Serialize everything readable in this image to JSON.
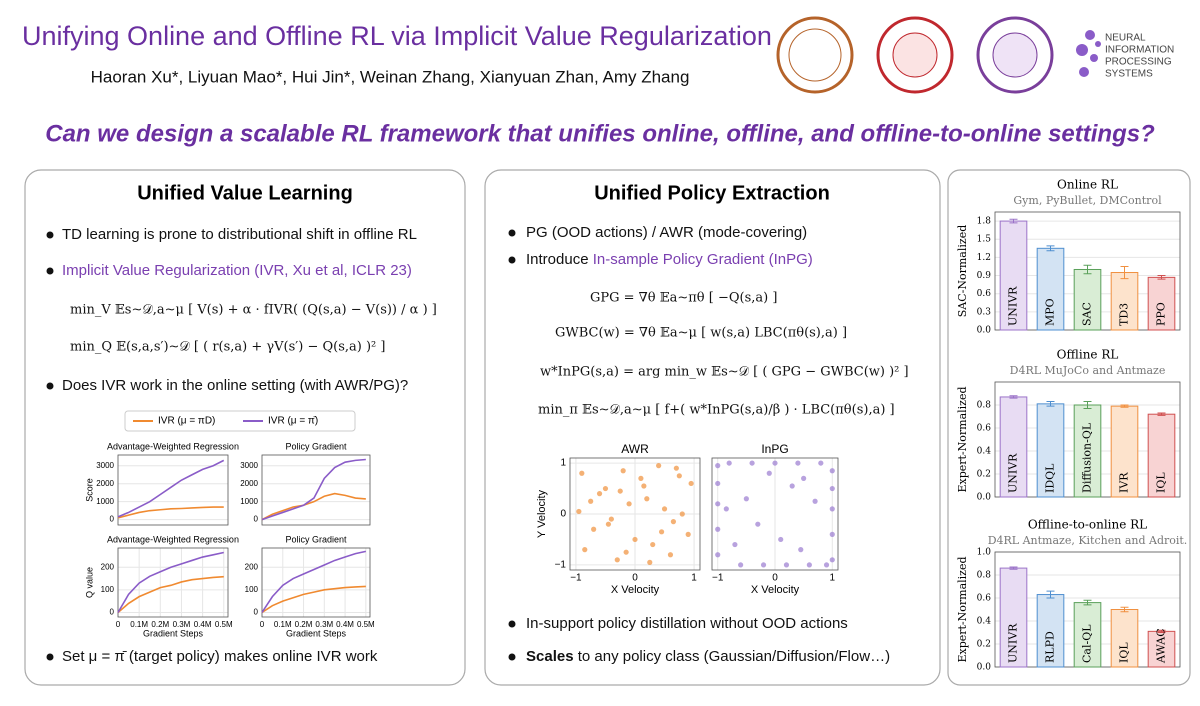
{
  "header": {
    "title": "Unifying Online and Offline RL via Implicit Value Regularization",
    "authors": "Haoran Xu*, Liyuan Mao*, Hui Jin*, Weinan Zhang, Xianyuan Zhan, Amy Zhang",
    "neurips": [
      "NEURAL",
      "INFORMATION",
      "PROCESSING",
      "SYSTEMS"
    ],
    "question": "Can we design a scalable RL framework that unifies online, offline, and offline-to-online settings?"
  },
  "left": {
    "title": "Unified Value Learning",
    "bullets": [
      "TD learning is prone to distributional shift in offline RL",
      "Implicit Value Regularization (IVR, Xu et al, ICLR 23)",
      "Does IVR work in the online setting (with AWR/PG)?",
      "Set μ = π̄ (target policy) makes online IVR work"
    ],
    "formulas": [
      "min_V  𝔼s∼𝒟,a∼μ [ V(s) + α · fIVR( (Q(s,a) − V(s)) / α ) ]",
      "min_Q  𝔼(s,a,s′)∼𝒟 [ ( r(s,a) + γV(s′) − Q(s,a) )² ]"
    ]
  },
  "middle": {
    "title": "Unified Policy Extraction",
    "bullets": [
      "PG (OOD actions) / AWR (mode-covering)",
      "Introduce",
      "In-sample Policy Gradient (InPG)",
      "In-support policy distillation without OOD actions",
      "Scales",
      "to any policy class (Gaussian/Diffusion/Flow…)"
    ],
    "formulas": [
      "GPG = ∇θ 𝔼a∼πθ [ −Q(s,a) ]",
      "GWBC(w) = ∇θ 𝔼a∼μ [ w(s,a) LBC(πθ(s),a) ]",
      "w*InPG(s,a) = arg min_w 𝔼s∼𝒟 [ ( GPG − GWBC(w) )² ]",
      "min_π 𝔼s∼𝒟,a∼μ [ f+( w*InPG(s,a)/β ) · LBC(πθ(s),a) ]"
    ]
  },
  "chart_data": [
    {
      "type": "line",
      "title": "Advantage-Weighted Regression",
      "y_label": "Score",
      "x": [
        0,
        50000,
        100000,
        150000,
        200000,
        250000,
        300000,
        350000,
        400000,
        450000,
        500000
      ],
      "xlim": [
        0,
        520000
      ],
      "ylim": [
        -300,
        3600
      ],
      "yticks": [
        0,
        1000,
        2000,
        3000
      ],
      "series": [
        {
          "name": "IVR (μ = πD)",
          "color": "#f08a30",
          "values": [
            100,
            250,
            400,
            500,
            550,
            600,
            620,
            650,
            680,
            700,
            700
          ]
        },
        {
          "name": "IVR (μ = π̄)",
          "color": "#8a5cc8",
          "values": [
            150,
            400,
            700,
            1000,
            1400,
            1800,
            2200,
            2500,
            2800,
            3000,
            3300
          ]
        }
      ]
    },
    {
      "type": "line",
      "title": "Policy Gradient",
      "x": [
        0,
        50000,
        100000,
        150000,
        200000,
        250000,
        300000,
        350000,
        400000,
        450000,
        500000
      ],
      "xlim": [
        0,
        520000
      ],
      "ylim": [
        -300,
        3600
      ],
      "yticks": [
        0,
        1000,
        2000,
        3000
      ],
      "series": [
        {
          "name": "IVR (μ = πD)",
          "color": "#f08a30",
          "values": [
            0,
            300,
            500,
            700,
            800,
            1000,
            1300,
            1450,
            1350,
            1200,
            1150
          ]
        },
        {
          "name": "IVR (μ = π̄)",
          "color": "#8a5cc8",
          "values": [
            0,
            200,
            400,
            600,
            800,
            1200,
            2300,
            2900,
            3200,
            3300,
            3350
          ]
        }
      ]
    },
    {
      "type": "line",
      "title": "Advantage-Weighted Regression",
      "y_label": "Q value",
      "x_label": "Gradient Steps",
      "x": [
        0,
        50000,
        100000,
        150000,
        200000,
        250000,
        300000,
        350000,
        400000,
        450000,
        500000
      ],
      "xlim": [
        0,
        520000
      ],
      "xticks": [
        0,
        {
          "value": 100000,
          "label": "0.1M"
        },
        {
          "value": 200000,
          "label": "0.2M"
        },
        {
          "value": 300000,
          "label": "0.3M"
        },
        {
          "value": 400000,
          "label": "0.4M"
        },
        {
          "value": 500000,
          "label": "0.5M"
        }
      ],
      "ylim": [
        -20,
        285
      ],
      "yticks": [
        0,
        100,
        200
      ],
      "series": [
        {
          "name": "IVR (μ = πD)",
          "color": "#f08a30",
          "values": [
            0,
            40,
            70,
            90,
            110,
            120,
            135,
            145,
            150,
            155,
            158
          ]
        },
        {
          "name": "IVR (μ = π̄)",
          "color": "#8a5cc8",
          "values": [
            0,
            80,
            130,
            160,
            180,
            200,
            215,
            230,
            245,
            255,
            265
          ]
        }
      ]
    },
    {
      "type": "line",
      "title": "Policy Gradient",
      "x_label": "Gradient Steps",
      "x": [
        0,
        50000,
        100000,
        150000,
        200000,
        250000,
        300000,
        350000,
        400000,
        450000,
        500000
      ],
      "xlim": [
        0,
        520000
      ],
      "xticks": [
        0,
        {
          "value": 100000,
          "label": "0.1M"
        },
        {
          "value": 200000,
          "label": "0.2M"
        },
        {
          "value": 300000,
          "label": "0.3M"
        },
        {
          "value": 400000,
          "label": "0.4M"
        },
        {
          "value": 500000,
          "label": "0.5M"
        }
      ],
      "ylim": [
        -20,
        285
      ],
      "yticks": [
        0,
        100,
        200
      ],
      "series": [
        {
          "name": "IVR (μ = πD)",
          "color": "#f08a30",
          "values": [
            0,
            30,
            50,
            65,
            80,
            90,
            100,
            105,
            110,
            113,
            115
          ]
        },
        {
          "name": "IVR (μ = π̄)",
          "color": "#8a5cc8",
          "values": [
            0,
            70,
            120,
            150,
            170,
            190,
            210,
            230,
            245,
            260,
            270
          ]
        }
      ]
    },
    {
      "type": "scatter",
      "title": "AWR",
      "x_label": "X Velocity",
      "y_label": "Y Velocity",
      "color": "#f0903a",
      "xlim": [
        -1.1,
        1.1
      ],
      "ylim": [
        -1.1,
        1.1
      ],
      "xticks": [
        {
          "value": -1,
          "label": "−1"
        },
        0,
        1
      ],
      "yticks": [
        {
          "value": -1,
          "label": "−1"
        },
        0,
        1
      ],
      "x": [
        -0.9,
        -0.7,
        -0.5,
        -0.3,
        -0.1,
        0.1,
        0.3,
        0.5,
        0.7,
        0.9,
        -0.85,
        -0.6,
        -0.4,
        -0.2,
        0.0,
        0.2,
        0.4,
        0.6,
        0.8,
        0.95,
        -0.75,
        -0.45,
        -0.15,
        0.15,
        0.45,
        0.75,
        -0.95,
        -0.25,
        0.25,
        0.65
      ],
      "y": [
        0.8,
        -0.3,
        0.5,
        -0.9,
        0.2,
        0.7,
        -0.6,
        0.1,
        0.9,
        -0.4,
        -0.7,
        0.4,
        -0.1,
        0.85,
        -0.5,
        0.3,
        0.95,
        -0.8,
        0.0,
        0.6,
        0.25,
        -0.2,
        -0.75,
        0.55,
        -0.35,
        0.75,
        0.05,
        0.45,
        -0.95,
        -0.15
      ]
    },
    {
      "type": "scatter",
      "title": "InPG",
      "x_label": "X Velocity",
      "color": "#9a7ad0",
      "xlim": [
        -1.1,
        1.1
      ],
      "ylim": [
        -1.1,
        1.1
      ],
      "xticks": [
        {
          "value": -1,
          "label": "−1"
        },
        0,
        1
      ],
      "x": [
        -1,
        -1,
        -1,
        -1,
        -1,
        1,
        1,
        1,
        1,
        1,
        -0.8,
        -0.4,
        0,
        0.4,
        0.8,
        -0.6,
        -0.2,
        0.2,
        0.6,
        0.9,
        -0.5,
        0.1,
        0.5,
        -0.3,
        0.3,
        -0.7,
        0.7,
        -0.1,
        0.45,
        -0.85
      ],
      "y": [
        -0.8,
        -0.3,
        0.2,
        0.6,
        0.95,
        -0.9,
        -0.4,
        0.1,
        0.5,
        0.85,
        1,
        1,
        1,
        1,
        1,
        -1,
        -1,
        -1,
        -1,
        -1,
        0.3,
        -0.5,
        0.7,
        -0.2,
        0.55,
        -0.6,
        0.25,
        0.8,
        -0.7,
        0.1
      ]
    },
    {
      "type": "bar",
      "title": "Online RL",
      "subtitle": "Gym, PyBullet, DMControl",
      "y_label": "SAC-Normalized",
      "categories": [
        "UNIVR",
        "MPO",
        "SAC",
        "TD3",
        "PPO"
      ],
      "values": [
        1.8,
        1.35,
        1.0,
        0.95,
        0.87
      ],
      "errors": [
        0.03,
        0.04,
        0.07,
        0.1,
        0.03
      ],
      "ylim": [
        0,
        1.95
      ],
      "yticks": [
        {
          "value": 0,
          "label": "0.0"
        },
        0.3,
        0.6,
        0.9,
        1.2,
        1.5,
        1.8
      ],
      "colors": [
        "#9b73c8",
        "#4f8fd0",
        "#5aa05a",
        "#f09040",
        "#d05050"
      ]
    },
    {
      "type": "bar",
      "title": "Offline RL",
      "subtitle": "D4RL MuJoCo and Antmaze",
      "y_label": "Expert-Normalized",
      "categories": [
        "UNIVR",
        "IDQL",
        "Diffusion-QL",
        "IVR",
        "IQL"
      ],
      "values": [
        0.87,
        0.81,
        0.8,
        0.79,
        0.72
      ],
      "errors": [
        0.01,
        0.02,
        0.03,
        0.01,
        0.01
      ],
      "ylim": [
        0,
        1.0
      ],
      "yticks": [
        {
          "value": 0,
          "label": "0.0"
        },
        0.2,
        0.4,
        0.6,
        0.8
      ],
      "colors": [
        "#9b73c8",
        "#4f8fd0",
        "#5aa05a",
        "#f09040",
        "#d05050"
      ]
    },
    {
      "type": "bar",
      "title": "Offline-to-online RL",
      "subtitle": "D4RL Antmaze, Kitchen and Adroit.",
      "y_label": "Expert-Normalized",
      "categories": [
        "UNIVR",
        "RLPD",
        "Cal-QL",
        "IQL",
        "AWAC"
      ],
      "values": [
        0.86,
        0.63,
        0.56,
        0.5,
        0.31
      ],
      "errors": [
        0.01,
        0.03,
        0.02,
        0.02,
        0.01
      ],
      "ylim": [
        0,
        1.0
      ],
      "yticks": [
        {
          "value": 0,
          "label": "0.0"
        },
        0.2,
        0.4,
        0.6,
        0.8,
        {
          "value": 1,
          "label": "1.0"
        }
      ],
      "colors": [
        "#9b73c8",
        "#4f8fd0",
        "#5aa05a",
        "#f09040",
        "#d05050"
      ]
    }
  ]
}
